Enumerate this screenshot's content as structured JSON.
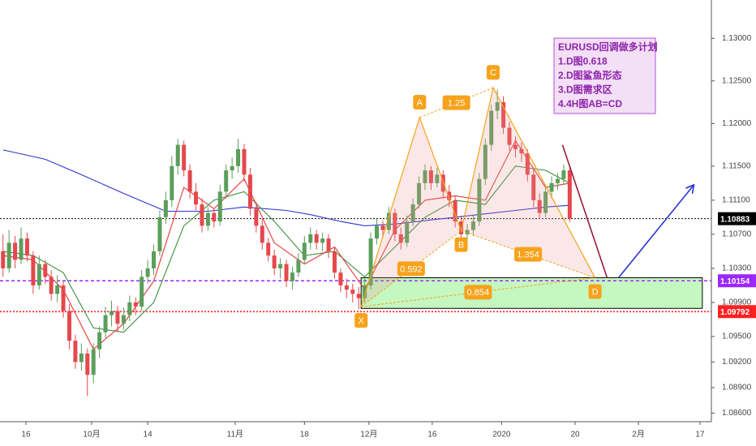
{
  "chart_data": {
    "type": "candlestick",
    "up_color": "#5b9e5b",
    "down_color": "#e5484d",
    "xlim": [
      -0.5,
      117.5
    ],
    "ylim": [
      1.085,
      1.1345
    ],
    "xticks": [
      {
        "value": 3.8,
        "label": "16"
      },
      {
        "value": 14.7,
        "label": "10月"
      },
      {
        "value": 24,
        "label": "14"
      },
      {
        "value": 38.5,
        "label": "11月"
      },
      {
        "value": 50,
        "label": "18"
      },
      {
        "value": 60.7,
        "label": "12月"
      },
      {
        "value": 71.2,
        "label": "16"
      },
      {
        "value": 82.7,
        "label": "2020"
      },
      {
        "value": 94.9,
        "label": "20"
      },
      {
        "value": 105.4,
        "label": "2月"
      },
      {
        "value": 115.6,
        "label": "17"
      }
    ],
    "yticks": [
      {
        "value": 1.13,
        "label": "1.13000"
      },
      {
        "value": 1.125,
        "label": "1.12500"
      },
      {
        "value": 1.12,
        "label": "1.12000"
      },
      {
        "value": 1.115,
        "label": "1.11500"
      },
      {
        "value": 1.111,
        "label": "1.11100"
      },
      {
        "value": 1.107,
        "label": "1.10700"
      },
      {
        "value": 1.103,
        "label": "1.10300"
      },
      {
        "value": 1.099,
        "label": "1.09900"
      },
      {
        "value": 1.095,
        "label": "1.09500"
      },
      {
        "value": 1.092,
        "label": "1.09200"
      },
      {
        "value": 1.089,
        "label": "1.08900"
      },
      {
        "value": 1.086,
        "label": "1.08600"
      }
    ],
    "ohlc": [
      [
        1.105,
        1.107,
        1.102,
        1.103
      ],
      [
        1.103,
        1.1075,
        1.1025,
        1.106
      ],
      [
        1.106,
        1.1068,
        1.103,
        1.104
      ],
      [
        1.104,
        1.1078,
        1.1035,
        1.1065
      ],
      [
        1.1065,
        1.1072,
        1.1038,
        1.1045
      ],
      [
        1.1045,
        1.105,
        1.1,
        1.101
      ],
      [
        1.101,
        1.1045,
        1.1005,
        1.1035
      ],
      [
        1.1035,
        1.104,
        1.1012,
        1.102
      ],
      [
        1.102,
        1.1028,
        1.0992,
        1.1
      ],
      [
        1.1,
        1.1022,
        1.099,
        1.101
      ],
      [
        1.101,
        1.1015,
        1.0972,
        1.098
      ],
      [
        1.098,
        1.0988,
        1.0935,
        1.0945
      ],
      [
        1.0945,
        1.0952,
        1.0912,
        1.092
      ],
      [
        1.092,
        1.0942,
        1.091,
        1.093
      ],
      [
        1.093,
        1.0936,
        1.088,
        1.0905
      ],
      [
        1.0905,
        1.0942,
        1.0895,
        1.0935
      ],
      [
        1.0935,
        1.0962,
        1.0925,
        1.0955
      ],
      [
        1.0955,
        1.0985,
        1.0948,
        1.0975
      ],
      [
        1.0975,
        1.0992,
        1.0962,
        1.098
      ],
      [
        1.098,
        1.0986,
        1.0955,
        1.0965
      ],
      [
        1.0965,
        1.0984,
        1.0958,
        1.0975
      ],
      [
        1.0975,
        1.0998,
        1.0968,
        1.099
      ],
      [
        1.099,
        1.0996,
        1.0975,
        1.0985
      ],
      [
        1.0985,
        1.1028,
        1.098,
        1.102
      ],
      [
        1.102,
        1.104,
        1.1012,
        1.103
      ],
      [
        1.103,
        1.1058,
        1.1022,
        1.105
      ],
      [
        1.105,
        1.1098,
        1.1045,
        1.109
      ],
      [
        1.109,
        1.112,
        1.1082,
        1.111
      ],
      [
        1.111,
        1.1162,
        1.1102,
        1.115
      ],
      [
        1.115,
        1.1182,
        1.114,
        1.1175
      ],
      [
        1.1175,
        1.118,
        1.1138,
        1.1145
      ],
      [
        1.1145,
        1.1152,
        1.1112,
        1.112
      ],
      [
        1.112,
        1.113,
        1.1098,
        1.1105
      ],
      [
        1.1105,
        1.1112,
        1.1072,
        1.108
      ],
      [
        1.108,
        1.1102,
        1.1074,
        1.1095
      ],
      [
        1.1095,
        1.11,
        1.1078,
        1.1085
      ],
      [
        1.1085,
        1.1128,
        1.108,
        1.112
      ],
      [
        1.112,
        1.1152,
        1.1112,
        1.1145
      ],
      [
        1.1145,
        1.116,
        1.1135,
        1.115
      ],
      [
        1.115,
        1.1182,
        1.1142,
        1.117
      ],
      [
        1.117,
        1.1176,
        1.1132,
        1.114
      ],
      [
        1.114,
        1.1148,
        1.1092,
        1.11
      ],
      [
        1.11,
        1.1108,
        1.1072,
        1.108
      ],
      [
        1.108,
        1.1088,
        1.1052,
        1.106
      ],
      [
        1.106,
        1.1066,
        1.1038,
        1.1045
      ],
      [
        1.1045,
        1.1052,
        1.1022,
        1.103
      ],
      [
        1.103,
        1.1042,
        1.1018,
        1.1035
      ],
      [
        1.1035,
        1.104,
        1.1008,
        1.1015
      ],
      [
        1.1015,
        1.1032,
        1.1005,
        1.1025
      ],
      [
        1.1025,
        1.1048,
        1.102,
        1.104
      ],
      [
        1.104,
        1.1068,
        1.1035,
        1.106
      ],
      [
        1.106,
        1.1078,
        1.1052,
        1.107
      ],
      [
        1.107,
        1.1075,
        1.1052,
        1.106
      ],
      [
        1.106,
        1.1072,
        1.105,
        1.1065
      ],
      [
        1.1065,
        1.107,
        1.1042,
        1.105
      ],
      [
        1.105,
        1.1055,
        1.1018,
        1.1025
      ],
      [
        1.1025,
        1.103,
        1.1002,
        1.101
      ],
      [
        1.101,
        1.1018,
        1.0995,
        1.1005
      ],
      [
        1.1005,
        1.1012,
        1.099,
        1.1
      ],
      [
        1.1,
        1.1008,
        1.0982,
        1.0995
      ],
      [
        1.0995,
        1.1018,
        1.099,
        1.101
      ],
      [
        1.101,
        1.1072,
        1.1005,
        1.1065
      ],
      [
        1.1065,
        1.1088,
        1.1058,
        1.108
      ],
      [
        1.108,
        1.1086,
        1.1066,
        1.1075
      ],
      [
        1.1075,
        1.1102,
        1.107,
        1.1095
      ],
      [
        1.1095,
        1.11,
        1.1062,
        1.107
      ],
      [
        1.107,
        1.1078,
        1.1052,
        1.106
      ],
      [
        1.106,
        1.1092,
        1.1055,
        1.1085
      ],
      [
        1.1085,
        1.1112,
        1.108,
        1.1105
      ],
      [
        1.1105,
        1.1138,
        1.11,
        1.113
      ],
      [
        1.113,
        1.1152,
        1.1122,
        1.1145
      ],
      [
        1.1145,
        1.115,
        1.1122,
        1.113
      ],
      [
        1.113,
        1.1148,
        1.1125,
        1.114
      ],
      [
        1.114,
        1.1145,
        1.1112,
        1.112
      ],
      [
        1.112,
        1.1128,
        1.1102,
        1.111
      ],
      [
        1.111,
        1.1115,
        1.1078,
        1.1085
      ],
      [
        1.1085,
        1.1092,
        1.1065,
        1.107
      ],
      [
        1.107,
        1.1082,
        1.1062,
        1.1075
      ],
      [
        1.1075,
        1.1092,
        1.1068,
        1.1085
      ],
      [
        1.1085,
        1.1142,
        1.108,
        1.1135
      ],
      [
        1.1135,
        1.1182,
        1.1128,
        1.1175
      ],
      [
        1.1175,
        1.1222,
        1.1168,
        1.1215
      ],
      [
        1.1215,
        1.124,
        1.1205,
        1.1225
      ],
      [
        1.1225,
        1.1232,
        1.1188,
        1.1195
      ],
      [
        1.1195,
        1.1202,
        1.1168,
        1.1175
      ],
      [
        1.1175,
        1.1185,
        1.116,
        1.117
      ],
      [
        1.117,
        1.1178,
        1.1155,
        1.1165
      ],
      [
        1.1165,
        1.117,
        1.1132,
        1.114
      ],
      [
        1.114,
        1.1148,
        1.1102,
        1.111
      ],
      [
        1.111,
        1.1118,
        1.1088,
        1.1095
      ],
      [
        1.1095,
        1.1128,
        1.109,
        1.112
      ],
      [
        1.112,
        1.1138,
        1.1112,
        1.113
      ],
      [
        1.113,
        1.1142,
        1.1122,
        1.1135
      ],
      [
        1.1135,
        1.1152,
        1.1128,
        1.1145
      ],
      [
        1.1145,
        1.115,
        1.1084,
        1.10883
      ]
    ],
    "series": [
      {
        "color": "#2b35d0",
        "x": [
          0,
          7,
          13,
          20,
          27,
          34,
          40,
          47,
          51,
          56,
          60,
          65,
          70,
          75,
          80,
          85,
          90,
          94
        ],
        "values": [
          1.1169,
          1.1158,
          1.114,
          1.1118,
          1.1097,
          1.1097,
          1.1102,
          1.1098,
          1.1093,
          1.1085,
          1.108,
          1.1082,
          1.1086,
          1.109,
          1.1094,
          1.1098,
          1.1102,
          1.1104
        ]
      },
      {
        "color": "#3c8f3c",
        "x": [
          0,
          5,
          10,
          15,
          20,
          25,
          30,
          35,
          40,
          45,
          50,
          55,
          60,
          65,
          70,
          75,
          80,
          85,
          90,
          94
        ],
        "values": [
          1.105,
          1.1045,
          1.1025,
          1.096,
          1.0955,
          1.099,
          1.108,
          1.111,
          1.112,
          1.1085,
          1.1045,
          1.105,
          1.102,
          1.1055,
          1.109,
          1.111,
          1.1105,
          1.115,
          1.1145,
          1.113
        ]
      },
      {
        "color": "#e53935",
        "x": [
          0,
          5,
          10,
          15,
          20,
          25,
          30,
          35,
          40,
          45,
          50,
          55,
          60,
          65,
          70,
          75,
          80,
          85,
          90,
          94
        ],
        "values": [
          1.1045,
          1.104,
          1.1005,
          1.0935,
          1.0965,
          1.1015,
          1.1125,
          1.11,
          1.1135,
          1.106,
          1.1035,
          1.1055,
          1.1005,
          1.1075,
          1.111,
          1.1115,
          1.111,
          1.118,
          1.1125,
          1.113
        ]
      }
    ],
    "levels": [
      {
        "value": 1.10883,
        "color": "#000000",
        "dash": "2,2"
      },
      {
        "value": 1.10154,
        "color": "#9c27ff",
        "dash": "4,3"
      },
      {
        "value": 1.09792,
        "color": "#ff2020",
        "dash": "2,2"
      }
    ],
    "zone": {
      "x": [
        59.4,
        116
      ],
      "low": 1.0983,
      "high": 1.1019
    },
    "pattern": {
      "color": "#f7a21b",
      "points": [
        {
          "label": "X",
          "x": 59.4,
          "y": 1.0985
        },
        {
          "label": "A",
          "x": 69.1,
          "y": 1.1207
        },
        {
          "label": "B",
          "x": 76,
          "y": 1.1074
        },
        {
          "label": "C",
          "x": 81.3,
          "y": 1.1242
        },
        {
          "label": "D",
          "x": 98.2,
          "y": 1.1019
        }
      ],
      "ratios": [
        {
          "value": 1.25,
          "from": "A",
          "to": "C"
        },
        {
          "value": 0.592,
          "from": "X",
          "to": "B"
        },
        {
          "value": 1.354,
          "from": "B",
          "to": "D"
        },
        {
          "value": 0.854,
          "from": "X",
          "to": "D"
        }
      ]
    },
    "arrows": [
      {
        "color": "#9b1b3a",
        "x": [
          92.8,
          100.2
        ],
        "y": [
          1.1175,
          1.1019
        ],
        "head": false
      },
      {
        "color": "#2b35d0",
        "x": [
          102.1,
          114.6
        ],
        "y": [
          1.1019,
          1.1128
        ],
        "head": true
      }
    ],
    "note": {
      "lines": [
        "EURUSD回调做多计划",
        "1.D图0.618",
        "2.D图鲨鱼形态",
        "3.D图需求区",
        "4.4H图AB=CD"
      ]
    }
  }
}
